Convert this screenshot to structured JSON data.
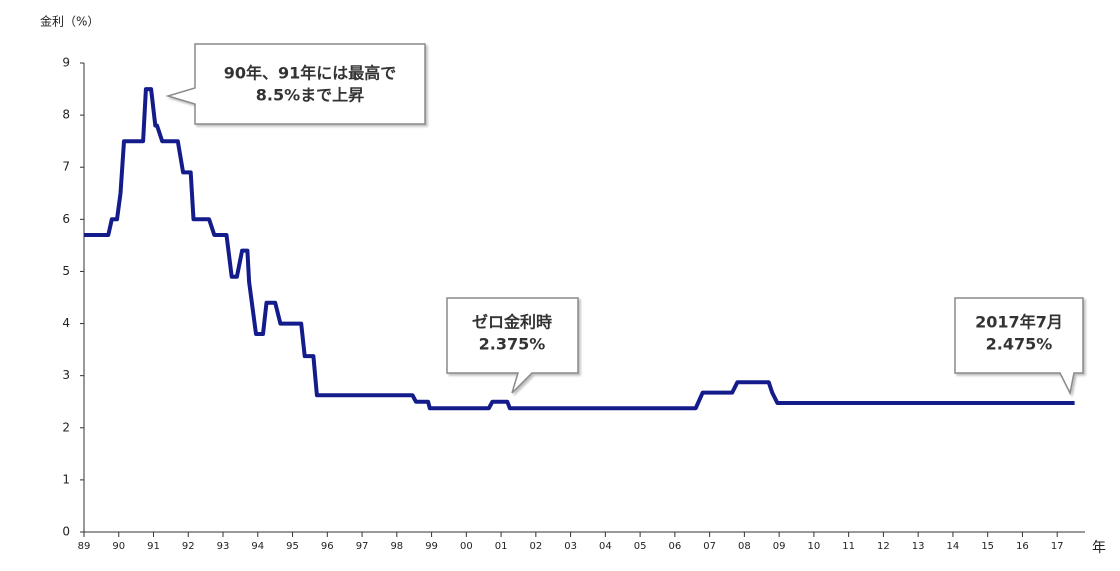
{
  "chart_data": {
    "type": "line",
    "ylabel": "金利（%）",
    "xlabel": "年",
    "xlim": [
      1989,
      2017.8
    ],
    "ylim": [
      0,
      9
    ],
    "yticks": [
      0,
      1,
      2,
      3,
      4,
      5,
      6,
      7,
      8,
      9
    ],
    "xticks": [
      {
        "value": 1989,
        "label": "89"
      },
      {
        "value": 1990,
        "label": "90"
      },
      {
        "value": 1991,
        "label": "91"
      },
      {
        "value": 1992,
        "label": "92"
      },
      {
        "value": 1993,
        "label": "93"
      },
      {
        "value": 1994,
        "label": "94"
      },
      {
        "value": 1995,
        "label": "95"
      },
      {
        "value": 1996,
        "label": "96"
      },
      {
        "value": 1997,
        "label": "97"
      },
      {
        "value": 1998,
        "label": "98"
      },
      {
        "value": 1999,
        "label": "99"
      },
      {
        "value": 2000,
        "label": "00"
      },
      {
        "value": 2001,
        "label": "01"
      },
      {
        "value": 2002,
        "label": "02"
      },
      {
        "value": 2003,
        "label": "03"
      },
      {
        "value": 2004,
        "label": "04"
      },
      {
        "value": 2005,
        "label": "05"
      },
      {
        "value": 2006,
        "label": "06"
      },
      {
        "value": 2007,
        "label": "07"
      },
      {
        "value": 2008,
        "label": "08"
      },
      {
        "value": 2009,
        "label": "09"
      },
      {
        "value": 2010,
        "label": "10"
      },
      {
        "value": 2011,
        "label": "11"
      },
      {
        "value": 2012,
        "label": "12"
      },
      {
        "value": 2013,
        "label": "13"
      },
      {
        "value": 2014,
        "label": "14"
      },
      {
        "value": 2015,
        "label": "15"
      },
      {
        "value": 2016,
        "label": "16"
      },
      {
        "value": 2017,
        "label": "17"
      }
    ],
    "x": [
      1989,
      1989.7,
      1989.8,
      1989.95,
      1990.05,
      1990.15,
      1990.7,
      1990.78,
      1990.93,
      1991.05,
      1991.1,
      1991.25,
      1991.7,
      1991.85,
      1992.07,
      1992.15,
      1992.6,
      1992.75,
      1993.1,
      1993.25,
      1993.4,
      1993.55,
      1993.7,
      1993.75,
      1993.95,
      1994.15,
      1994.25,
      1994.5,
      1994.65,
      1995.25,
      1995.35,
      1995.6,
      1995.7,
      1998.45,
      1998.55,
      1998.9,
      1998.95,
      2000.65,
      2000.75,
      2001.18,
      2001.25,
      2006.6,
      2006.8,
      2007.65,
      2007.8,
      2008.7,
      2008.8,
      2008.95,
      2017.5
    ],
    "series": [
      {
        "name": "金利",
        "color": "#131c8a",
        "values": [
          5.7,
          5.7,
          6.0,
          6.0,
          6.5,
          7.5,
          7.5,
          8.5,
          8.5,
          7.8,
          7.8,
          7.5,
          7.5,
          6.9,
          6.9,
          6.0,
          6.0,
          5.7,
          5.7,
          4.9,
          4.9,
          5.4,
          5.4,
          4.8,
          3.8,
          3.8,
          4.4,
          4.4,
          4.0,
          4.0,
          3.375,
          3.375,
          2.625,
          2.625,
          2.5,
          2.5,
          2.375,
          2.375,
          2.5,
          2.5,
          2.375,
          2.375,
          2.675,
          2.675,
          2.875,
          2.875,
          2.675,
          2.475,
          2.475
        ]
      }
    ],
    "annotations": [
      {
        "lines": [
          "90年、91年には最高で",
          "8.5%まで上昇"
        ]
      },
      {
        "lines": [
          "ゼロ金利時",
          "2.375%"
        ]
      },
      {
        "lines": [
          "2017年7月",
          "2.475%"
        ]
      }
    ]
  }
}
